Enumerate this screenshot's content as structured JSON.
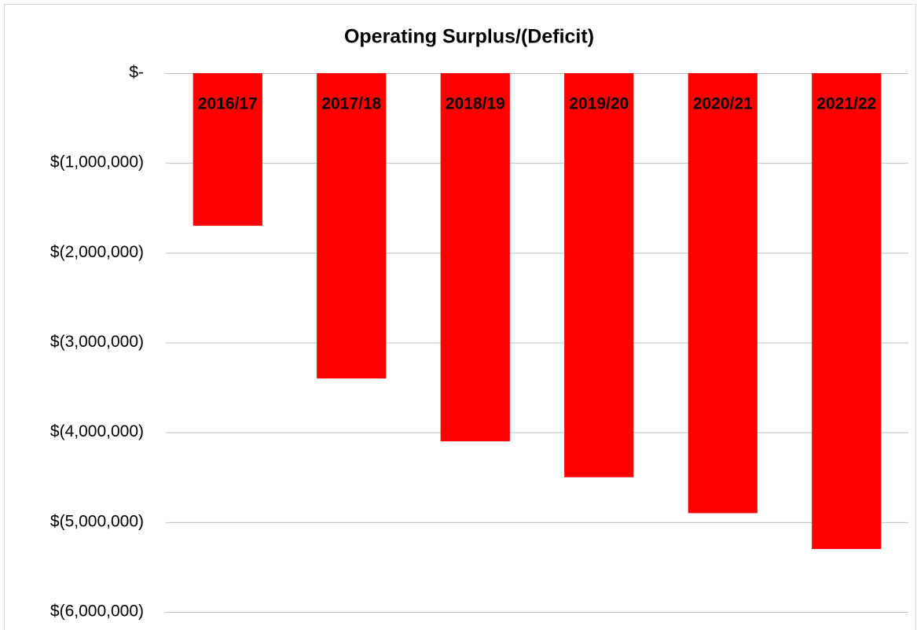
{
  "chart_data": {
    "type": "bar",
    "title": "Operating Surplus/(Deficit)",
    "categories": [
      "2016/17",
      "2017/18",
      "2018/19",
      "2019/20",
      "2020/21",
      "2021/22"
    ],
    "values": [
      -1700000,
      -3400000,
      -4100000,
      -4500000,
      -4900000,
      -5300000
    ],
    "color": "#ff0000",
    "ylim": [
      -6000000,
      0
    ],
    "yticks": [
      {
        "value": 0,
        "label": "$-"
      },
      {
        "value": -1000000,
        "label": "$(1,000,000)"
      },
      {
        "value": -2000000,
        "label": "$(2,000,000)"
      },
      {
        "value": -3000000,
        "label": "$(3,000,000)"
      },
      {
        "value": -4000000,
        "label": "$(4,000,000)"
      },
      {
        "value": -5000000,
        "label": "$(5,000,000)"
      },
      {
        "value": -6000000,
        "label": "$(6,000,000)"
      }
    ],
    "grid": true
  }
}
